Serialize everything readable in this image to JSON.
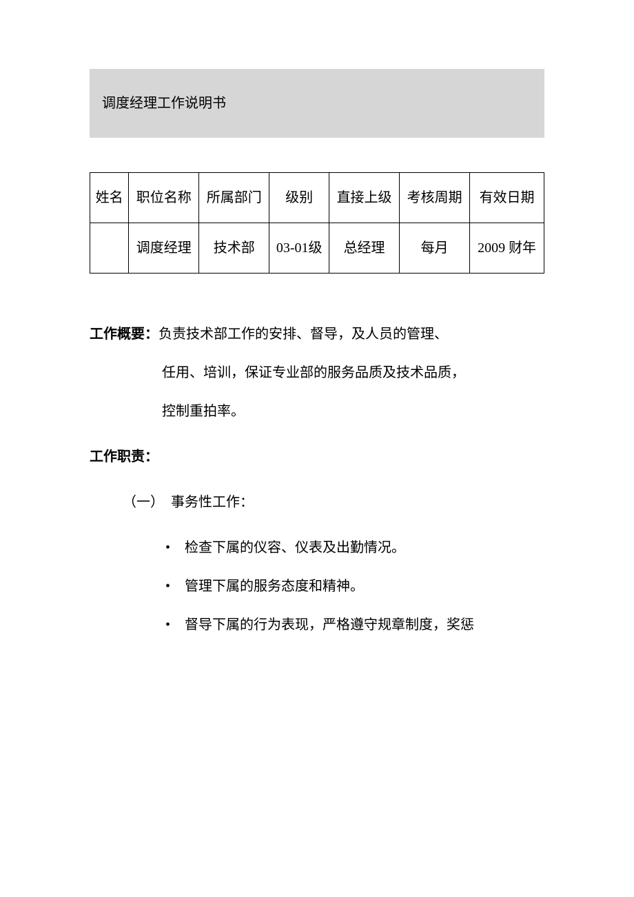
{
  "title": "调度经理工作说明书",
  "table": {
    "headers": [
      "姓名",
      "职位名称",
      "所属部门",
      "级别",
      "直接上级",
      "考核周期",
      "有效日期"
    ],
    "row": [
      "",
      "调度经理",
      "技术部",
      "03-01级",
      "总经理",
      "每月",
      "2009 财年"
    ]
  },
  "summary": {
    "label": "工作概要：",
    "line1": "负责技术部工作的安排、督导，及人员的管理、",
    "line2": "任用、培训，保证专业部的服务品质及技术品质，",
    "line3": "控制重拍率。"
  },
  "responsibilities": {
    "label": "工作职责：",
    "section1": {
      "heading": "（一）　事务性工作：",
      "items": [
        "检查下属的仪容、仪表及出勤情况。",
        "管理下属的服务态度和精神。",
        "督导下属的行为表现，严格遵守规章制度，奖惩"
      ]
    }
  }
}
